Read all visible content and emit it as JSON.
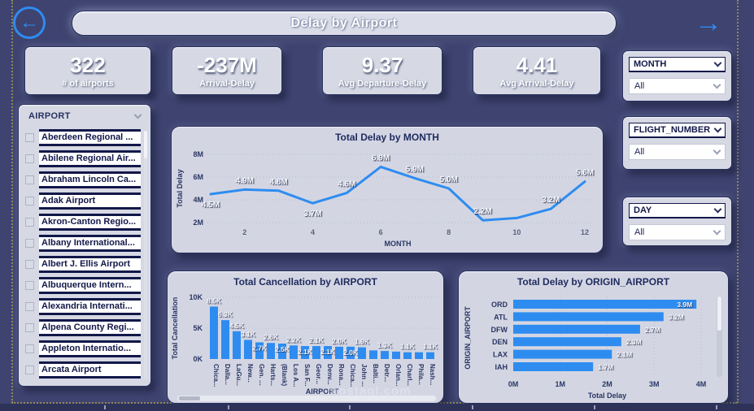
{
  "page": {
    "background": "#3E4370",
    "accent": "#2E8CF0",
    "navy": "#1A2153",
    "card": "#D6D9E4"
  },
  "header": {
    "title": "Delay by Airport",
    "back_icon": "←",
    "forward_icon": "→"
  },
  "kpis": [
    {
      "value": "322",
      "label": "# of airports"
    },
    {
      "value": "-237M",
      "label": "Arrival-Delay"
    },
    {
      "value": "9.37",
      "label": "Avg Departure-Delay"
    },
    {
      "value": "4.41",
      "label": "Avg Arrival-Delay"
    }
  ],
  "airport_slicer": {
    "header": "AIRPORT",
    "items": [
      "Aberdeen Regional ...",
      "Abilene Regional Air...",
      "Abraham Lincoln Ca...",
      "Adak Airport",
      "Akron-Canton Regio...",
      "Albany International...",
      "Albert J. Ellis Airport",
      "Albuquerque Intern...",
      "Alexandria Internati...",
      "Alpena County Regi...",
      "Appleton Internatio...",
      "Arcata Airport"
    ]
  },
  "dropdowns": [
    {
      "label": "MONTH",
      "value": "All"
    },
    {
      "label": "FLIGHT_NUMBER",
      "value": "All"
    },
    {
      "label": "DAY",
      "value": "All"
    }
  ],
  "watermark": "mostaql.com",
  "chart_data": [
    {
      "type": "line",
      "title": "Total Delay by MONTH",
      "xlabel": "MONTH",
      "ylabel": "Total Delay",
      "x": [
        1,
        2,
        3,
        4,
        5,
        6,
        7,
        8,
        9,
        10,
        11,
        12
      ],
      "values": [
        4.5,
        4.9,
        4.8,
        3.7,
        4.6,
        6.9,
        5.9,
        5.0,
        2.2,
        2.4,
        3.2,
        5.6
      ],
      "unit": "M",
      "point_labels": [
        "4.5M",
        "4.9M",
        "4.8M",
        "3.7M",
        "4.6M",
        "6.9M",
        "5.9M",
        "5.0M",
        "2.2M",
        "",
        "3.2M",
        "5.6M"
      ],
      "labels_below_x": [
        1,
        4
      ],
      "ylim": [
        2,
        8
      ],
      "yticks": [
        "2M",
        "4M",
        "6M",
        "8M"
      ],
      "xticks": [
        2,
        4,
        6,
        8,
        10,
        12
      ],
      "grid": "dotted",
      "legend": false
    },
    {
      "type": "bar",
      "title": "Total Cancellation by AIRPORT",
      "xlabel": "AIRPORT",
      "ylabel": "Total Cancellation",
      "categories": [
        "Chica...",
        "Dalla...",
        "LaGu...",
        "New...",
        "Gen. ...",
        "Harts...",
        "(Blank)",
        "Los A...",
        "San F...",
        "Geor...",
        "Denv...",
        "Rona...",
        "Chica...",
        "John ...",
        "Balti...",
        "Detr...",
        "Orlan...",
        "Charl...",
        "Phila...",
        "Nash..."
      ],
      "values": [
        8.5,
        6.3,
        4.5,
        3.1,
        2.7,
        2.6,
        2.5,
        2.2,
        2.1,
        2.1,
        2.1,
        2.0,
        2.0,
        1.9,
        1.4,
        1.3,
        1.2,
        1.1,
        1.1,
        1.1
      ],
      "unit": "K",
      "labels": [
        "8.5K",
        "6.3K",
        "4.5K",
        "3.1K",
        "2.7K",
        "2.6K",
        "2.5K",
        "2.2K",
        "2.1K",
        "2.1K",
        "2.1K",
        "2.0K",
        "2.0K",
        "1.9K",
        "",
        "1.3K",
        "",
        "1.1K",
        "",
        "1.1K"
      ],
      "label_inside": [
        5,
        7,
        9,
        11,
        13
      ],
      "ylim": [
        0,
        10
      ],
      "yticks": [
        "0K",
        "5K",
        "10K"
      ],
      "grid": "dotted",
      "legend": false
    },
    {
      "type": "bar-horizontal",
      "title": "Total Delay by ORIGIN_AIRPORT",
      "xlabel": "Total Delay",
      "ylabel": "ORIGIN_AIRPORT",
      "categories": [
        "ORD",
        "ATL",
        "DFW",
        "DEN",
        "LAX",
        "IAH"
      ],
      "values": [
        3.9,
        3.2,
        2.7,
        2.3,
        2.1,
        1.7
      ],
      "unit": "M",
      "labels": [
        "3.9M",
        "3.2M",
        "2.7M",
        "2.3M",
        "2.1M",
        "1.7M"
      ],
      "label_inside": [
        1
      ],
      "xlim": [
        0,
        4
      ],
      "xticks": [
        "0M",
        "1M",
        "2M",
        "3M",
        "4M"
      ],
      "grid": "dotted",
      "legend": false
    }
  ]
}
